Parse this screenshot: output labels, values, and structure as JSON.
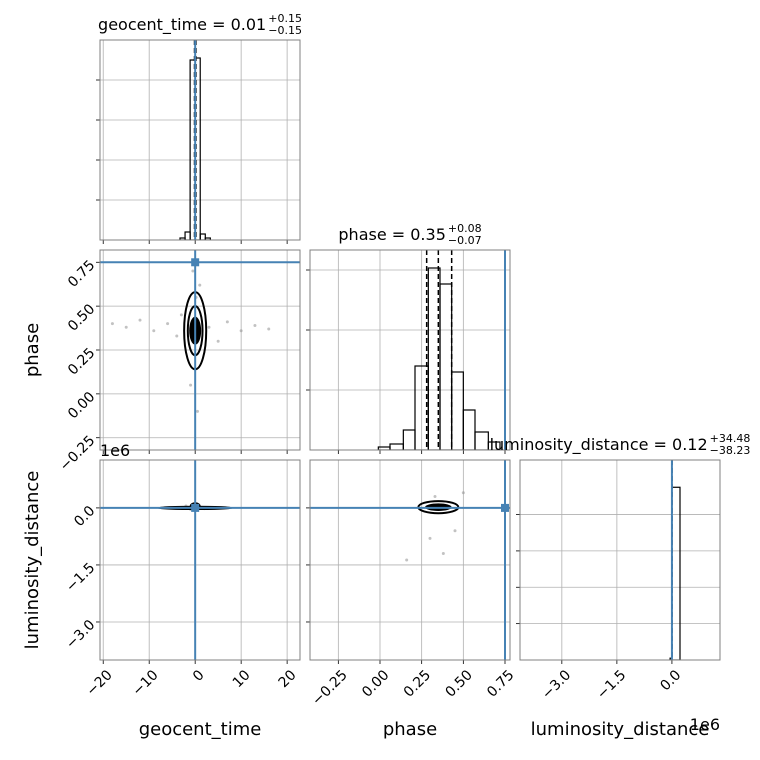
{
  "chart_data": [
    {
      "type": "histogram",
      "title": "geocent_time = 0.01",
      "title_sup": "+0.15",
      "title_sub": "−0.15",
      "bins": [
        -5.5,
        -4.4,
        -3.3,
        -2.2,
        -1.1,
        0,
        1.1,
        2.2,
        3.3,
        4.4,
        5.5
      ],
      "counts": [
        0,
        0,
        0.01,
        0.04,
        0.9,
        0.91,
        0.03,
        0.01,
        0,
        0
      ],
      "xlim": [
        -20.7,
        22.8
      ],
      "xticks": [
        -20,
        -10,
        0,
        10,
        20
      ],
      "ylim": [
        0,
        1
      ],
      "yticks": [
        0.2,
        0.4,
        0.6,
        0.8
      ],
      "quantiles": [
        -0.14,
        0.01,
        0.16
      ],
      "truth": 0,
      "color": "#000000",
      "truth_color": "#4682b4",
      "grid": true
    },
    {
      "type": "scatter",
      "ylabel": "phase",
      "xlim": [
        -20.7,
        22.8
      ],
      "xticks": [
        -20,
        -10,
        0,
        10,
        20
      ],
      "ylim": [
        -0.32,
        0.82
      ],
      "yticks": [
        {
          "value": -0.25,
          "label": "−0.25"
        },
        {
          "value": 0,
          "label": "0.00"
        },
        0.25,
        {
          "value": 0.5,
          "label": "0.50"
        },
        0.75
      ],
      "x": [
        -18,
        -15,
        -12,
        -9,
        -6,
        -4,
        -3,
        3,
        5,
        7,
        10,
        13,
        16,
        -1,
        1,
        0.5,
        -0.5,
        0.2
      ],
      "y": [
        0.4,
        0.38,
        0.42,
        0.36,
        0.4,
        0.33,
        0.45,
        0.38,
        0.3,
        0.41,
        0.36,
        0.39,
        0.37,
        0.05,
        0.62,
        -0.1,
        0.7,
        0.55
      ],
      "density": {
        "cx": 0,
        "cy": 0.36,
        "rx": 1.3,
        "ry": 0.08
      },
      "contours": [
        {
          "cx": 0,
          "cy": 0.36,
          "rx": 1.6,
          "ry": 0.14
        },
        {
          "cx": 0,
          "cy": 0.36,
          "rx": 2.4,
          "ry": 0.22
        }
      ],
      "truth_x": 0,
      "truth_y": 0.75,
      "color": "#000000",
      "point_color": "#999999",
      "truth_color": "#4682b4",
      "grid": true
    },
    {
      "type": "histogram",
      "title": "phase = 0.35",
      "title_sup": "+0.08",
      "title_sub": "−0.07",
      "bins": [
        -0.01,
        0.06,
        0.14,
        0.21,
        0.29,
        0.36,
        0.43,
        0.5,
        0.57,
        0.65,
        0.72
      ],
      "counts": [
        0.015,
        0.03,
        0.1,
        0.42,
        0.91,
        0.83,
        0.39,
        0.2,
        0.09,
        0.04
      ],
      "xlim": [
        -0.42,
        0.78
      ],
      "xticks": [
        -0.25,
        0,
        0.25,
        0.5,
        0.75
      ],
      "ylim": [
        0,
        1
      ],
      "yticks": [
        0.3,
        0.6,
        0.9
      ],
      "quantiles": [
        0.28,
        0.35,
        0.43
      ],
      "truth": 0.75,
      "color": "#000000",
      "truth_color": "#4682b4",
      "grid": true
    },
    {
      "type": "scatter",
      "ylabel": "luminosity_distance",
      "xlabel": "geocent_time",
      "y_offset": "1e6",
      "xlim": [
        -20.7,
        22.8
      ],
      "xticks": [
        {
          "value": -20,
          "label": "−20"
        },
        {
          "value": -10,
          "label": "−10"
        },
        0,
        10,
        20
      ],
      "ylim": [
        -4.0,
        1.26
      ],
      "yticks": [
        {
          "value": -3,
          "label": "−3.0"
        },
        {
          "value": -1.5,
          "label": "−1.5"
        },
        {
          "value": 0,
          "label": "0.0"
        }
      ],
      "x": [
        -2,
        -1,
        1,
        2,
        -4,
        3
      ],
      "y": [
        0.05,
        -0.04,
        0.03,
        -0.02,
        0.01,
        0.0
      ],
      "density": {
        "cx": 0,
        "cy": 0.05,
        "rx": 1.2,
        "ry": 0.1
      },
      "contours": [
        {
          "cx": 0,
          "cy": 0,
          "rx": 8,
          "ry": 0.03
        }
      ],
      "truth_x": 0,
      "truth_y": 0,
      "color": "#000000",
      "point_color": "#999999",
      "truth_color": "#4682b4",
      "grid": true
    },
    {
      "type": "scatter",
      "xlabel": "phase",
      "xlim": [
        -0.42,
        0.78
      ],
      "xticks": [
        {
          "value": -0.25,
          "label": "−0.25"
        },
        {
          "value": 0,
          "label": "0.00"
        },
        0.25,
        {
          "value": 0.5,
          "label": "0.50"
        },
        0.75
      ],
      "ylim": [
        -4.0,
        1.26
      ],
      "yticks": [
        -3,
        -1.5,
        0
      ],
      "x": [
        0.3,
        0.45,
        0.38,
        0.16,
        0.5,
        0.33
      ],
      "y": [
        -0.8,
        -0.6,
        -1.2,
        -1.37,
        0.4,
        0.3
      ],
      "density": {
        "cx": 0.35,
        "cy": 0.02,
        "rx": 0.08,
        "ry": 0.1
      },
      "contours": [
        {
          "cx": 0.35,
          "cy": 0.02,
          "rx": 0.12,
          "ry": 0.16
        }
      ],
      "truth_x": 0.75,
      "truth_y": 0,
      "color": "#000000",
      "point_color": "#999999",
      "truth_color": "#4682b4",
      "grid": true
    },
    {
      "type": "histogram",
      "title": "luminosity_distance = 0.12",
      "title_sup": "+34.48",
      "title_sub": "−38.23",
      "xlabel": "luminosity_distance",
      "x_offset": "1e6",
      "bins": [
        -0.05,
        0,
        0.22
      ],
      "counts": [
        0.01,
        0.95
      ],
      "xlim": [
        -4.14,
        1.31
      ],
      "xticks": [
        {
          "value": -3,
          "label": "−3.0"
        },
        {
          "value": -1.5,
          "label": "−1.5"
        },
        {
          "value": 0,
          "label": "0.0"
        }
      ],
      "ylim": [
        0,
        1.1
      ],
      "yticks": [
        0.2,
        0.4,
        0.6,
        0.8
      ],
      "quantiles": [
        -3.8e-05,
        1.2e-07,
        3.45e-05
      ],
      "truth": 0,
      "color": "#000000",
      "truth_color": "#4682b4",
      "grid": true
    }
  ]
}
